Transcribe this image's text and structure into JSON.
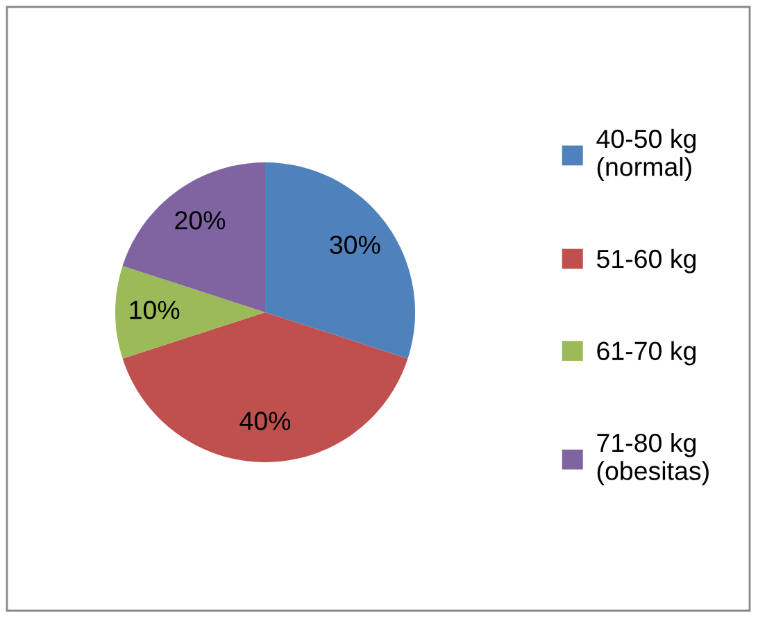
{
  "chart_data": {
    "type": "pie",
    "categories": [
      "40-50 kg\n(normal)",
      "51-60 kg",
      "61-70 kg",
      "71-80 kg\n(obesitas)"
    ],
    "values": [
      30,
      40,
      10,
      20
    ],
    "value_labels": [
      "30%",
      "40%",
      "10%",
      "20%"
    ],
    "colors": [
      "#4f81bd",
      "#c0504d",
      "#9bbb59",
      "#8064a2"
    ],
    "legend": "right"
  }
}
